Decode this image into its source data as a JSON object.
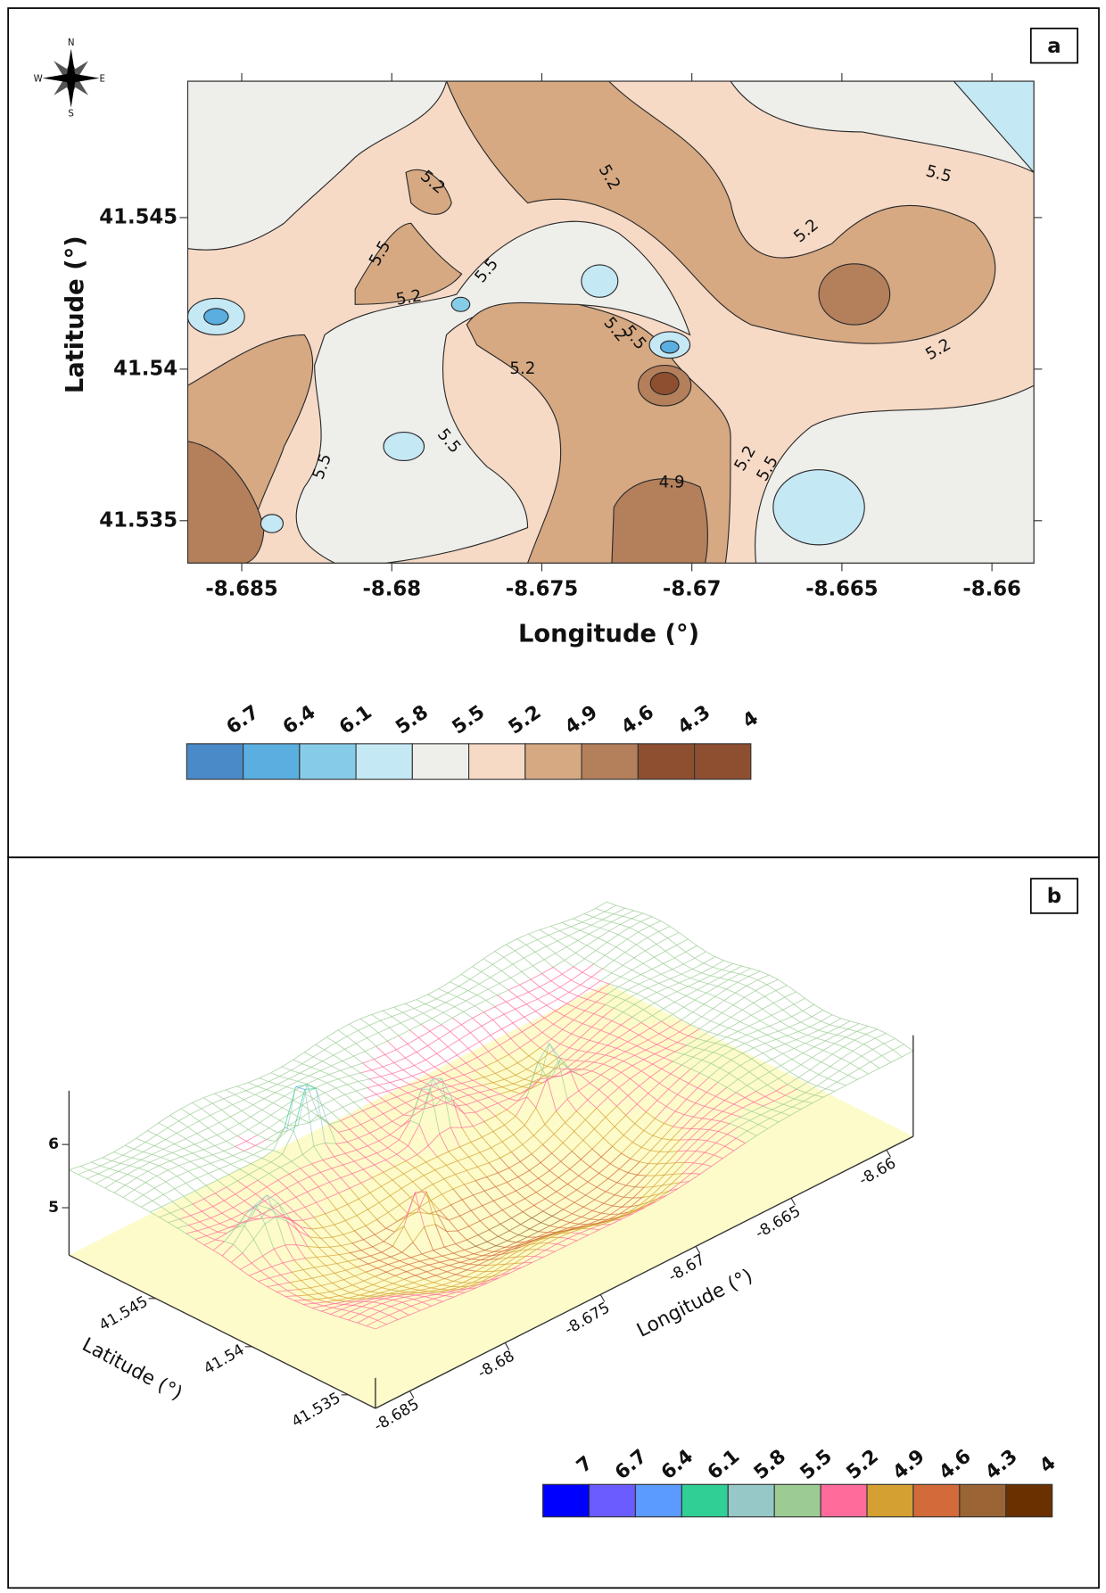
{
  "chart_data": [
    {
      "type": "contour",
      "panel_label": "a",
      "compass": {
        "N": "N",
        "E": "E",
        "S": "S",
        "W": "W"
      },
      "x_label": "Longitude (°)",
      "y_label": "Latitude (°)",
      "xlim": [
        -8.6868,
        -8.6586
      ],
      "xticks": [
        -8.685,
        -8.68,
        -8.675,
        -8.67,
        -8.665,
        -8.66
      ],
      "ylim": [
        41.5336,
        41.5495
      ],
      "yticks": [
        41.535,
        41.54,
        41.545
      ],
      "contour_labels": [
        5.2,
        5.2,
        5.2,
        5.2,
        5.2,
        5.2,
        5.2,
        5.2,
        4.9,
        5.5,
        5.5,
        5.5,
        5.5,
        5.5,
        5.5,
        5.5
      ],
      "levels": [
        6.7,
        6.4,
        6.1,
        5.8,
        5.5,
        5.2,
        4.9,
        4.6,
        4.3,
        4
      ],
      "colors": [
        "#4a8ac8",
        "#5aaee0",
        "#86cce8",
        "#c5e8f5",
        "#eeeeeb",
        "#f6dac6",
        "#d6a983",
        "#b47f5b",
        "#8e4f31",
        "#8e4f31"
      ]
    },
    {
      "type": "surface",
      "panel_label": "b",
      "x_label": "Longitude (°)",
      "y_label": "Latitude (°)",
      "xlim": [
        -8.6868,
        -8.6586
      ],
      "xticks": [
        -8.685,
        -8.68,
        -8.675,
        -8.67,
        -8.665,
        -8.66
      ],
      "ylim": [
        41.5336,
        41.5495
      ],
      "yticks": [
        41.535,
        41.54,
        41.545
      ],
      "zlim": [
        4.25,
        6.85
      ],
      "zticks": [
        5,
        6
      ],
      "levels": [
        7,
        6.7,
        6.4,
        6.1,
        5.8,
        5.5,
        5.2,
        4.9,
        4.6,
        4.3,
        4
      ],
      "colors": [
        "#0000ff",
        "#6a5cff",
        "#5b9bff",
        "#2fcf96",
        "#96c8c8",
        "#9ccc94",
        "#ff6b9a",
        "#d4a032",
        "#d26a3a",
        "#9a6434",
        "#6a3000"
      ]
    }
  ]
}
